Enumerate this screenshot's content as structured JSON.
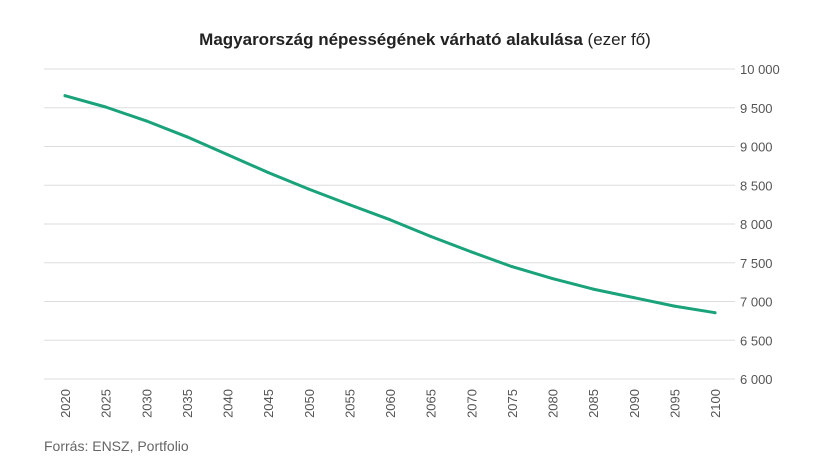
{
  "chart_data": {
    "type": "line",
    "title": "Magyarország népességének várható alakulása",
    "title_unit": "(ezer fő)",
    "xlabel": "",
    "ylabel": "",
    "x": [
      2020,
      2025,
      2030,
      2035,
      2040,
      2045,
      2050,
      2055,
      2060,
      2065,
      2070,
      2075,
      2080,
      2085,
      2090,
      2095,
      2100
    ],
    "x_tick_labels": [
      "2020",
      "2025",
      "2030",
      "2035",
      "2040",
      "2045",
      "2050",
      "2055",
      "2060",
      "2065",
      "2070",
      "2075",
      "2080",
      "2085",
      "2090",
      "2095",
      "2100"
    ],
    "series": [
      {
        "values": [
          9655,
          9510,
          9330,
          9125,
          8895,
          8665,
          8450,
          8250,
          8055,
          7840,
          7640,
          7450,
          7295,
          7160,
          7050,
          6940,
          6855
        ],
        "color": "#1aa37a"
      }
    ],
    "ylim": [
      6000,
      10000
    ],
    "y_ticks": [
      6000,
      6500,
      7000,
      7500,
      8000,
      8500,
      9000,
      9500,
      10000
    ],
    "y_tick_labels": [
      "6 000",
      "6 500",
      "7 000",
      "7 500",
      "8 000",
      "8 500",
      "9 000",
      "9 500",
      "10 000"
    ],
    "y_axis_position": "right",
    "grid": true,
    "source": "Forrás: ENSZ, Portfolio"
  }
}
